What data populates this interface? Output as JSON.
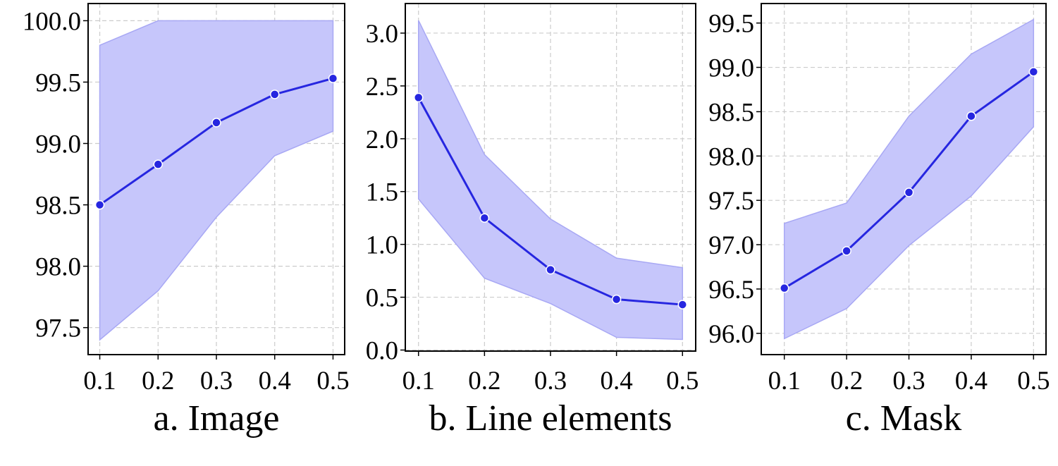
{
  "chart_data": [
    {
      "type": "line",
      "xlabel": "a. Image",
      "x": [
        0.1,
        0.2,
        0.3,
        0.4,
        0.5
      ],
      "values": [
        98.5,
        98.83,
        99.17,
        99.4,
        99.53
      ],
      "lower": [
        97.4,
        97.8,
        98.4,
        98.9,
        99.1
      ],
      "upper": [
        99.8,
        100.0,
        100.0,
        100.0,
        100.0
      ],
      "color": "#2626e0",
      "band_color": "#c6c6fb",
      "xlim": [
        0.08,
        0.52
      ],
      "ylim": [
        97.28,
        100.14
      ],
      "xticks": [
        0.1,
        0.2,
        0.3,
        0.4,
        0.5
      ],
      "yticks": [
        97.5,
        {
          "value": 98,
          "label": "98.0"
        },
        98.5,
        {
          "value": 99,
          "label": "99.0"
        },
        99.5,
        {
          "value": 100,
          "label": "100.0"
        }
      ],
      "grid": true
    },
    {
      "type": "line",
      "xlabel": "b. Line elements",
      "x": [
        0.1,
        0.2,
        0.3,
        0.4,
        0.5
      ],
      "values": [
        2.39,
        1.25,
        0.76,
        0.48,
        0.43
      ],
      "lower": [
        1.43,
        0.68,
        0.44,
        0.12,
        0.1
      ],
      "upper": [
        3.12,
        1.85,
        1.24,
        0.87,
        0.78
      ],
      "color": "#2626e0",
      "band_color": "#c6c6fb",
      "xlim": [
        0.08,
        0.52
      ],
      "ylim": [
        -0.01,
        3.28
      ],
      "xticks": [
        0.1,
        0.2,
        0.3,
        0.4,
        0.5
      ],
      "yticks": [
        {
          "value": 0,
          "label": "0.0"
        },
        0.5,
        {
          "value": 1,
          "label": "1.0"
        },
        1.5,
        {
          "value": 2,
          "label": "2.0"
        },
        2.5,
        {
          "value": 3,
          "label": "3.0"
        }
      ],
      "grid": true
    },
    {
      "type": "line",
      "xlabel": "c. Mask",
      "x": [
        0.1,
        0.2,
        0.3,
        0.4,
        0.5
      ],
      "values": [
        96.51,
        96.93,
        97.59,
        98.45,
        98.95
      ],
      "lower": [
        95.94,
        96.28,
        96.99,
        97.55,
        98.33
      ],
      "upper": [
        97.24,
        97.47,
        98.45,
        99.15,
        99.54
      ],
      "color": "#2626e0",
      "band_color": "#c6c6fb",
      "xlim": [
        0.063,
        0.52
      ],
      "ylim": [
        95.76,
        99.72
      ],
      "xticks": [
        0.1,
        0.2,
        0.3,
        0.4,
        0.5
      ],
      "yticks": [
        {
          "value": 96,
          "label": "96.0"
        },
        96.5,
        {
          "value": 97,
          "label": "97.0"
        },
        97.5,
        {
          "value": 98,
          "label": "98.0"
        },
        98.5,
        {
          "value": 99,
          "label": "99.0"
        },
        99.5
      ],
      "grid": true
    }
  ]
}
